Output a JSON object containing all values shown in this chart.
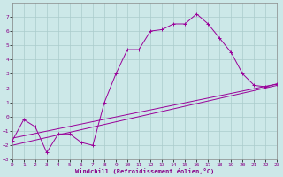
{
  "xlabel": "Windchill (Refroidissement éolien,°C)",
  "bg_color": "#cce8e8",
  "grid_color": "#aacccc",
  "line_color": "#990099",
  "xlim": [
    0,
    23
  ],
  "ylim": [
    -3,
    8
  ],
  "xticks": [
    0,
    1,
    2,
    3,
    4,
    5,
    6,
    7,
    8,
    9,
    10,
    11,
    12,
    13,
    14,
    15,
    16,
    17,
    18,
    19,
    20,
    21,
    22,
    23
  ],
  "yticks": [
    -3,
    -2,
    -1,
    0,
    1,
    2,
    3,
    4,
    5,
    6,
    7
  ],
  "series1_x": [
    0,
    1,
    2,
    3,
    4,
    5,
    6,
    7,
    8,
    9,
    10,
    11,
    12,
    13,
    14,
    15,
    16,
    17,
    18,
    19,
    20,
    21,
    22,
    23
  ],
  "series1_y": [
    -1.7,
    -0.2,
    -0.7,
    -2.5,
    -1.2,
    -1.2,
    -1.8,
    -2.0,
    1.0,
    3.0,
    4.7,
    4.7,
    6.0,
    6.1,
    6.5,
    6.5,
    7.2,
    6.5,
    5.5,
    4.5,
    3.0,
    2.2,
    2.1,
    2.3
  ],
  "line2_x": [
    0,
    23
  ],
  "line2_y": [
    -1.5,
    2.3
  ],
  "line3_x": [
    0,
    23
  ],
  "line3_y": [
    -2.0,
    2.2
  ]
}
